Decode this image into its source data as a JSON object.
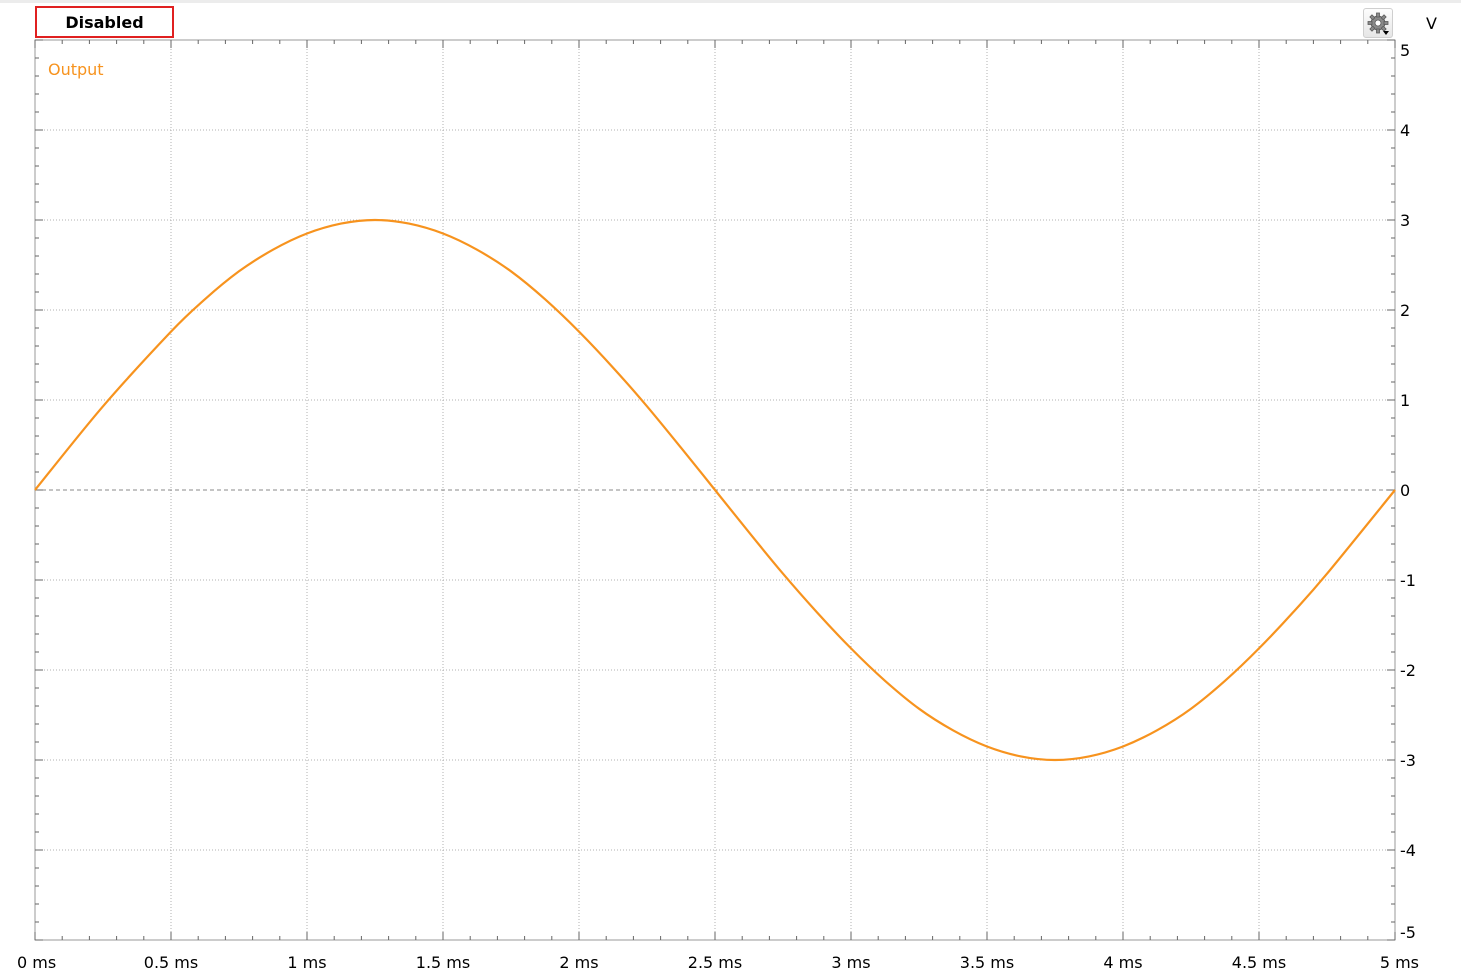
{
  "status": {
    "label": "Disabled"
  },
  "toolbar": {
    "settings_icon": "gear-icon"
  },
  "colors": {
    "accent": "#f7931e",
    "status_border": "#e02020",
    "grid": "#b0b0b0"
  },
  "chart_data": {
    "type": "line",
    "title": "",
    "xlabel": "",
    "ylabel": "V",
    "x_unit": "ms",
    "xlim": [
      0,
      5
    ],
    "ylim": [
      -5,
      5
    ],
    "grid": true,
    "legend": "top-left",
    "x_ticks": [
      "0 ms",
      "0.5 ms",
      "1 ms",
      "1.5 ms",
      "2 ms",
      "2.5 ms",
      "3 ms",
      "3.5 ms",
      "4 ms",
      "4.5 ms",
      "5 ms"
    ],
    "y_ticks": [
      "5",
      "4",
      "3",
      "2",
      "1",
      "0",
      "-1",
      "-2",
      "-3",
      "-4",
      "-5"
    ],
    "series": [
      {
        "name": "Output",
        "color": "#f7931e",
        "x": [
          0,
          0.25,
          0.5,
          0.625,
          0.75,
          0.875,
          1,
          1.125,
          1.25,
          1.375,
          1.5,
          1.625,
          1.75,
          1.875,
          2,
          2.125,
          2.25,
          2.375,
          2.5,
          2.625,
          2.75,
          2.875,
          3,
          3.125,
          3.25,
          3.375,
          3.5,
          3.625,
          3.75,
          3.875,
          4,
          4.125,
          4.25,
          4.375,
          4.5,
          4.625,
          4.75,
          5
        ],
        "y": [
          0,
          0.93,
          1.76,
          2.12,
          2.43,
          2.67,
          2.85,
          2.96,
          3.0,
          2.96,
          2.85,
          2.67,
          2.43,
          2.12,
          1.76,
          1.36,
          0.93,
          0.47,
          0,
          -0.47,
          -0.93,
          -1.36,
          -1.76,
          -2.12,
          -2.43,
          -2.67,
          -2.85,
          -2.96,
          -3.0,
          -2.96,
          -2.85,
          -2.67,
          -2.43,
          -2.12,
          -1.76,
          -1.36,
          -0.93,
          0
        ]
      }
    ]
  }
}
